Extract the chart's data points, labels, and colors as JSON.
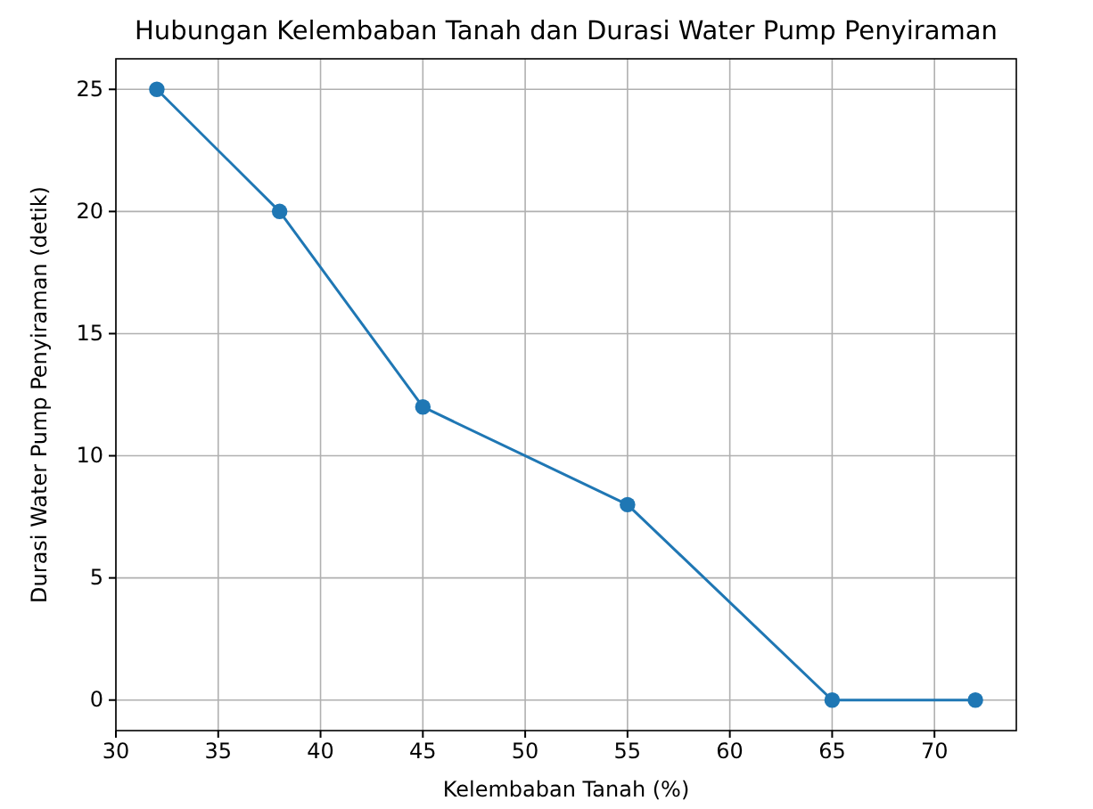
{
  "chart_data": {
    "type": "line",
    "title": "Hubungan Kelembaban Tanah dan Durasi Water Pump Penyiraman",
    "xlabel": "Kelembaban Tanah (%)",
    "ylabel": "Durasi Water Pump Penyiraman (detik)",
    "x": [
      32,
      38,
      45,
      55,
      65,
      72
    ],
    "series": [
      {
        "color": "#1f77b4",
        "values": [
          25,
          20,
          12,
          8,
          0,
          0
        ]
      }
    ],
    "xlim": [
      30,
      74
    ],
    "xticks": [
      30,
      35,
      40,
      45,
      50,
      55,
      60,
      65,
      70
    ],
    "ylim": [
      -1.25,
      26.25
    ],
    "yticks": [
      0,
      5,
      10,
      15,
      20,
      25
    ],
    "grid": true,
    "marker": "circle",
    "line_style": "solid"
  }
}
